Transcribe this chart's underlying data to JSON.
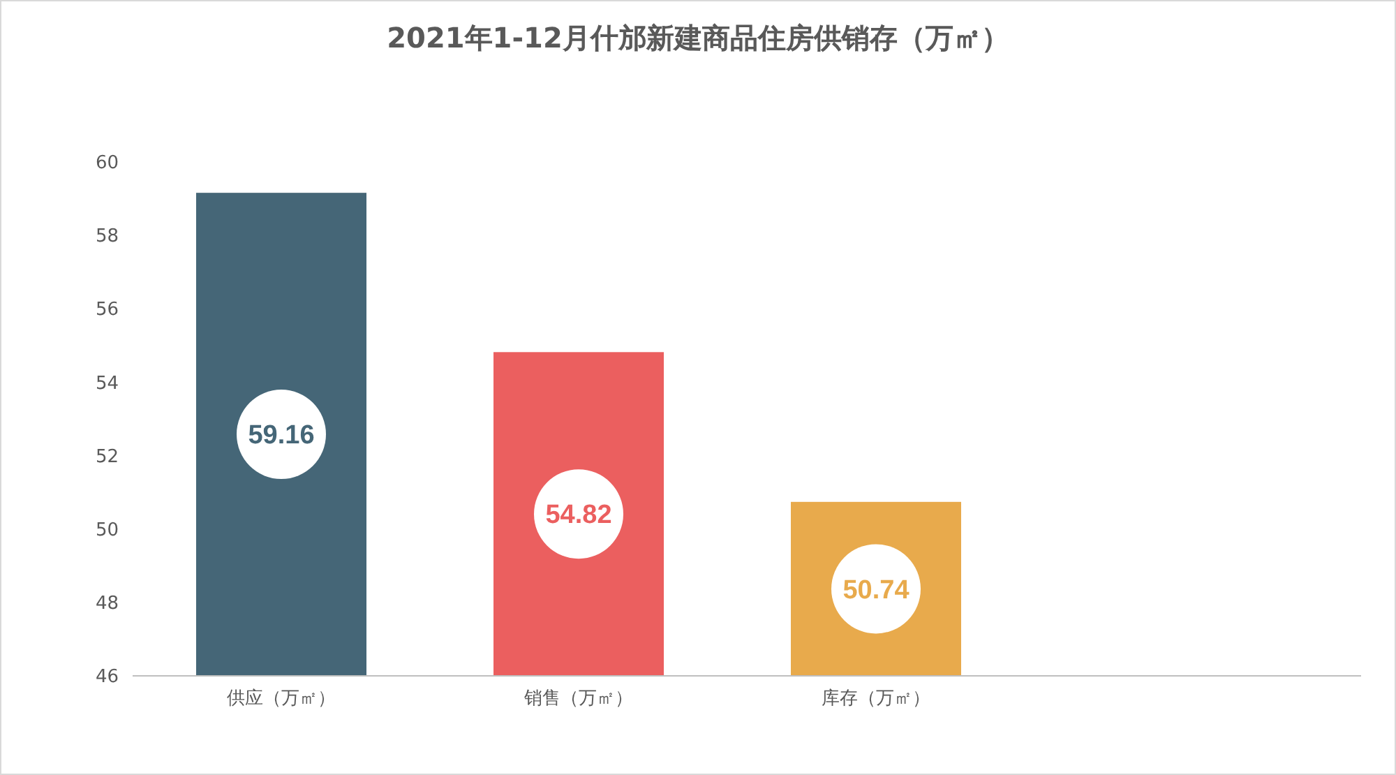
{
  "chart_data": {
    "type": "bar",
    "title": "2021年1-12月什邡新建商品住房供销存（万㎡）",
    "categories": [
      "供应（万㎡）",
      "销售（万㎡）",
      "库存（万㎡）"
    ],
    "values": [
      59.16,
      54.82,
      50.74
    ],
    "colors": [
      "#456677",
      "#eb5f5f",
      "#e8aa4c"
    ],
    "ylim": [
      46,
      60
    ],
    "yticks": [
      46,
      48,
      50,
      52,
      54,
      56,
      58,
      60
    ],
    "grid": false,
    "data_labels": true
  }
}
